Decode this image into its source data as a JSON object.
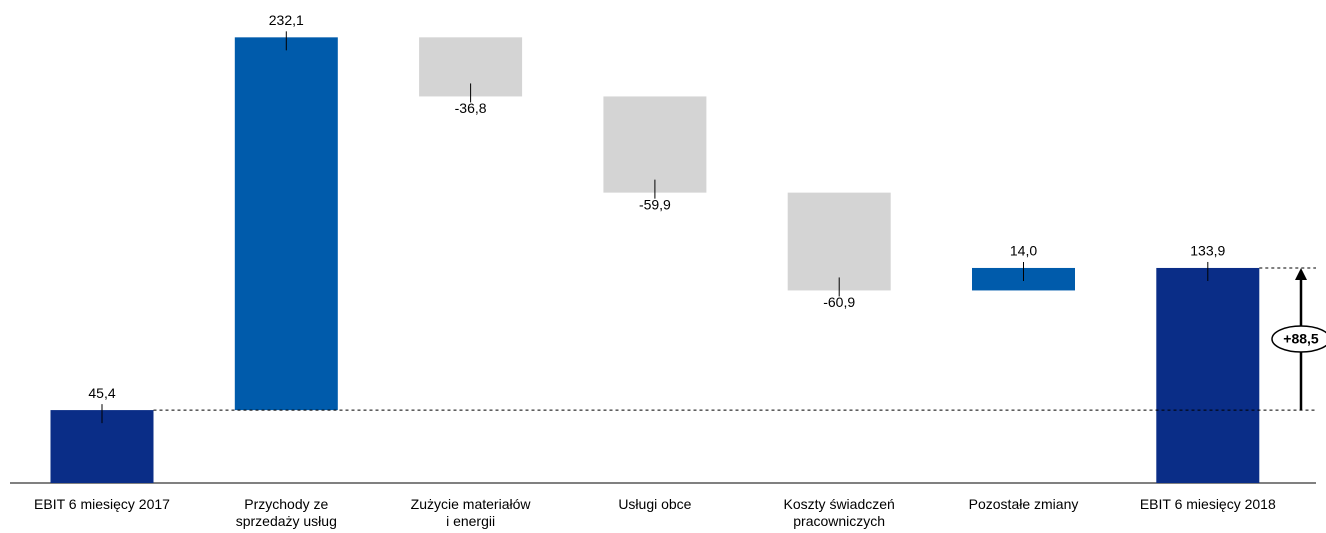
{
  "chart_data": {
    "type": "waterfall",
    "categories": [
      "EBIT 6 miesięcy 2017",
      "Przychody ze\nsprzedaży usług",
      "Zużycie materiałów\ni energii",
      "Usługi obce",
      "Koszty świadczeń\npracowniczych",
      "Pozostałe  zmiany",
      "EBIT 6 miesięcy 2018"
    ],
    "values": [
      45.4,
      232.1,
      -36.8,
      -59.9,
      -60.9,
      14.0,
      133.9
    ],
    "value_labels": [
      "45,4",
      "232,1",
      "-36,8",
      "-59,9",
      "-60,9",
      "14,0",
      "133,9"
    ],
    "total_color": "#0a2d87",
    "color": "#005bab",
    "decrease_color": "#d4d4d4",
    "annotation": {
      "value": 88.5,
      "label": "+88,5"
    }
  }
}
